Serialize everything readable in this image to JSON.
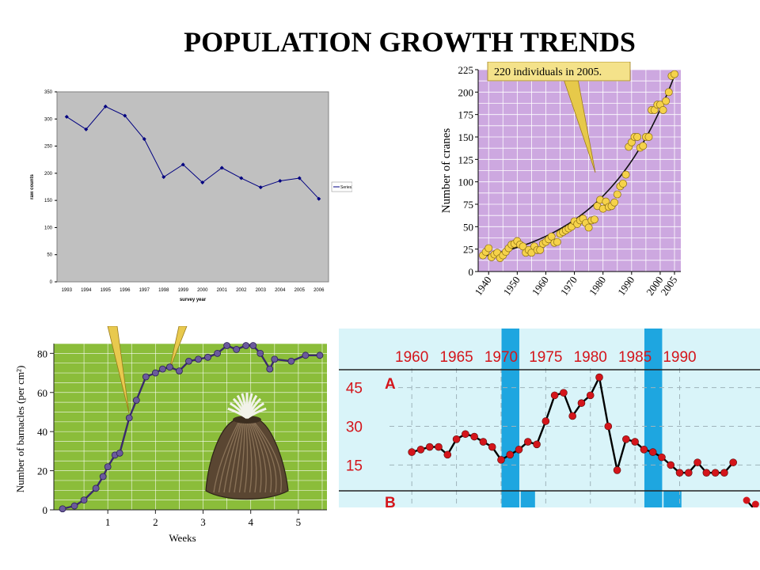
{
  "page": {
    "title": "POPULATION GROWTH TRENDS"
  },
  "chart_data": [
    {
      "type": "line",
      "x": [
        1993,
        1994,
        1995,
        1996,
        1997,
        1998,
        1999,
        2000,
        2001,
        2002,
        2003,
        2004,
        2005,
        2006
      ],
      "series": [
        {
          "name": "Series1",
          "values": [
            304,
            281,
            323,
            306,
            263,
            193,
            216,
            183,
            210,
            191,
            174,
            186,
            191,
            153
          ]
        }
      ],
      "xlabel": "survey year",
      "ylabel": "raw counts",
      "ylim": [
        0,
        350
      ],
      "yticks": [
        0,
        50,
        100,
        150,
        200,
        250,
        300,
        350
      ],
      "grid": false,
      "legend": "right",
      "colors": {
        "plot_bg": "#c0c0c0",
        "line": "#000080"
      }
    },
    {
      "type": "scatter",
      "annotation": "220 individuals in 2005.",
      "ylabel": "Number of cranes",
      "xlim": [
        1938,
        2005
      ],
      "ylim": [
        0,
        225
      ],
      "xticks": [
        1940,
        1950,
        1960,
        1970,
        1980,
        1990,
        2000,
        2005
      ],
      "yticks": [
        0,
        25,
        50,
        75,
        100,
        125,
        150,
        175,
        200,
        225
      ],
      "grid": true,
      "x": [
        1938,
        1939,
        1940,
        1941,
        1942,
        1943,
        1944,
        1945,
        1946,
        1947,
        1948,
        1949,
        1950,
        1951,
        1952,
        1953,
        1954,
        1955,
        1956,
        1957,
        1958,
        1959,
        1960,
        1961,
        1962,
        1963,
        1964,
        1965,
        1966,
        1967,
        1968,
        1969,
        1970,
        1971,
        1972,
        1973,
        1974,
        1975,
        1976,
        1977,
        1978,
        1979,
        1980,
        1981,
        1982,
        1983,
        1984,
        1985,
        1986,
        1987,
        1988,
        1989,
        1990,
        1991,
        1992,
        1993,
        1994,
        1995,
        1996,
        1997,
        1998,
        1999,
        2000,
        2001,
        2002,
        2003,
        2004,
        2005
      ],
      "y": [
        18,
        22,
        26,
        16,
        19,
        21,
        15,
        18,
        22,
        26,
        30,
        31,
        34,
        30,
        28,
        21,
        24,
        21,
        28,
        24,
        24,
        31,
        33,
        36,
        39,
        32,
        33,
        42,
        44,
        46,
        48,
        50,
        56,
        53,
        57,
        59,
        54,
        49,
        57,
        58,
        73,
        80,
        70,
        78,
        72,
        73,
        77,
        86,
        95,
        98,
        108,
        139,
        144,
        150,
        150,
        138,
        140,
        150,
        150,
        180,
        180,
        186,
        186,
        180,
        190,
        200,
        218,
        220
      ],
      "colors": {
        "plot_bg": "#cda8e0",
        "grid": "#ffffff",
        "point": "#f5d24a",
        "curve": "#111111"
      }
    },
    {
      "type": "line",
      "xlabel": "Weeks",
      "ylabel": "Number of barnacles (per cm²)",
      "xlim": [
        0,
        5.6
      ],
      "ylim": [
        0,
        85
      ],
      "xticks": [
        1,
        2,
        3,
        4,
        5
      ],
      "yticks": [
        0,
        20,
        40,
        60,
        80
      ],
      "grid": true,
      "x": [
        0.05,
        0.3,
        0.5,
        0.75,
        0.9,
        1.0,
        1.15,
        1.25,
        1.45,
        1.6,
        1.8,
        2.0,
        2.15,
        2.3,
        2.5,
        2.7,
        2.9,
        3.1,
        3.3,
        3.5,
        3.7,
        3.9,
        4.05,
        4.2,
        4.4,
        4.5,
        4.85,
        5.15,
        5.45
      ],
      "y": [
        0.5,
        2,
        5,
        11,
        17,
        22,
        28,
        29,
        47,
        56,
        68,
        70,
        72,
        73,
        71,
        76,
        77,
        78,
        80,
        84,
        82,
        84,
        84,
        80,
        72,
        77,
        76,
        79,
        79
      ],
      "colors": {
        "plot_bg": "#8bbd3a",
        "grid": "#ffffff",
        "line": "#3a2a6c",
        "point": "#6b5a9c"
      }
    },
    {
      "type": "line",
      "panel_labels": [
        "A",
        "B"
      ],
      "xticks": [
        1960,
        1965,
        1970,
        1975,
        1980,
        1985,
        1990
      ],
      "yticks": [
        15,
        30,
        45
      ],
      "xlim": [
        1957.5,
        1999
      ],
      "ylim": [
        5,
        55
      ],
      "grid": true,
      "shaded_intervals": [
        [
          1970,
          1972
        ],
        [
          1986,
          1988
        ]
      ],
      "x": [
        1960,
        1961,
        1962,
        1963,
        1964,
        1965,
        1966,
        1967,
        1968,
        1969,
        1970,
        1971,
        1972,
        1973,
        1974,
        1975,
        1976,
        1977,
        1978,
        1979,
        1980,
        1981,
        1982,
        1983,
        1984,
        1985,
        1986,
        1987,
        1988,
        1989,
        1990,
        1991,
        1992,
        1993,
        1994,
        1995,
        1996
      ],
      "y": [
        20,
        21,
        22,
        22,
        19,
        25,
        27,
        26,
        24,
        22,
        17,
        19,
        21,
        24,
        23,
        32,
        42,
        43,
        34,
        39,
        42,
        49,
        30,
        13,
        25,
        24,
        21,
        20,
        18,
        15,
        12,
        12,
        16,
        12,
        12,
        12,
        16
      ],
      "colors": {
        "plot_bg": "#d9f4f9",
        "grid": "#9fb4bb",
        "shade": "#1ea6e0",
        "line": "#000000",
        "point": "#d4151b"
      }
    }
  ]
}
